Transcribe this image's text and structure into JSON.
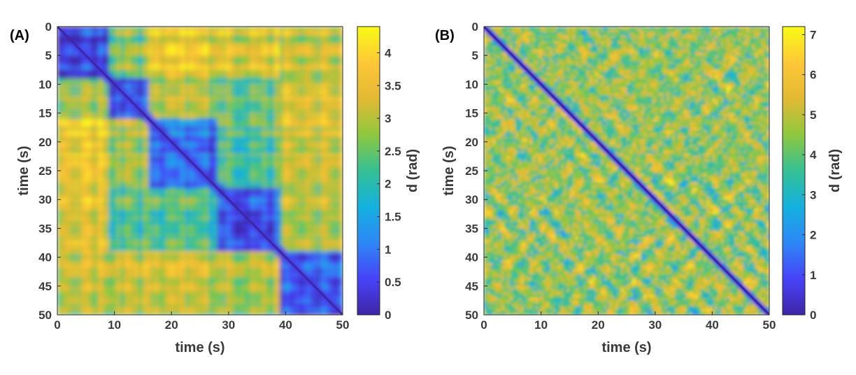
{
  "colormap": [
    "#3e26a8",
    "#4743f8",
    "#2e87f7",
    "#14b1de",
    "#35c093",
    "#8ec83e",
    "#e3b932",
    "#fec737",
    "#f9fb15"
  ],
  "chart_data": [
    {
      "type": "heatmap",
      "panel_label": "(A)",
      "xlabel": "time (s)",
      "ylabel": "time (s)",
      "xlim": [
        0,
        50
      ],
      "ylim": [
        0,
        50
      ],
      "y_reversed": true,
      "x_ticks": [
        "0",
        "10",
        "20",
        "30",
        "40",
        "50"
      ],
      "y_ticks": [
        "0",
        "5",
        "10",
        "15",
        "20",
        "25",
        "30",
        "35",
        "40",
        "45",
        "50"
      ],
      "colorbar_label": "d (rad)",
      "colorbar_range": [
        0,
        4.4
      ],
      "colorbar_ticks": [
        "0",
        "0.5",
        "1",
        "1.5",
        "2",
        "2.5",
        "3",
        "3.5",
        "4"
      ],
      "block_boundaries_s": [
        0,
        9,
        16,
        28,
        39,
        50
      ],
      "diagonal_value": 0
    },
    {
      "type": "heatmap",
      "panel_label": "(B)",
      "xlabel": "time (s)",
      "ylabel": "time (s)",
      "xlim": [
        0,
        50
      ],
      "ylim": [
        0,
        50
      ],
      "y_reversed": true,
      "x_ticks": [
        "0",
        "10",
        "20",
        "30",
        "40",
        "50"
      ],
      "y_ticks": [
        "0",
        "5",
        "10",
        "15",
        "20",
        "25",
        "30",
        "35",
        "40",
        "45",
        "50"
      ],
      "colorbar_label": "d (rad)",
      "colorbar_range": [
        0,
        7.2
      ],
      "colorbar_ticks": [
        "0",
        "1",
        "2",
        "3",
        "4",
        "5",
        "6",
        "7"
      ],
      "diagonal_value": 0
    }
  ]
}
